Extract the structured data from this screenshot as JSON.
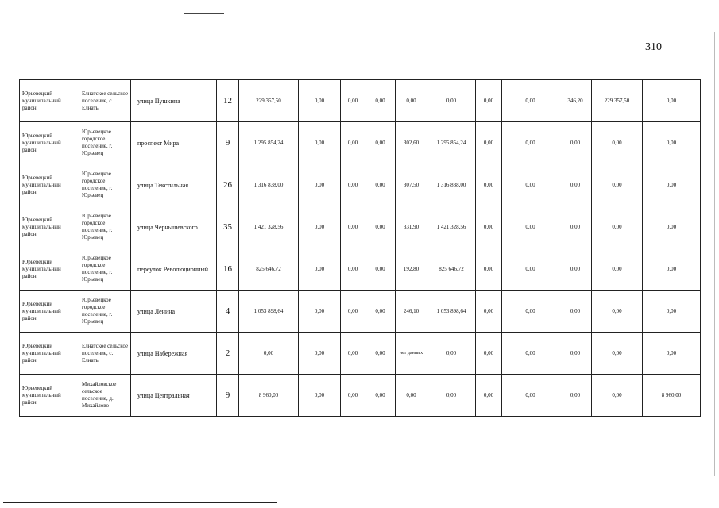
{
  "page_number": "310",
  "rows": [
    {
      "district": "Юрьевецкий муниципальный район",
      "settlement": "Елнатское сельское поселение, с. Елнать",
      "street": "улица Пушкина",
      "number": "12",
      "values": [
        "229 357,50",
        "0,00",
        "0,00",
        "0,00",
        "0,00",
        "0,00",
        "0,00",
        "0,00",
        "346,20",
        "229 357,50",
        "0,00"
      ]
    },
    {
      "district": "Юрьевецкий муниципальный район",
      "settlement": "Юрьевецкое городское поселение, г. Юрьевец",
      "street": "проспект Мира",
      "number": "9",
      "values": [
        "1 295 854,24",
        "0,00",
        "0,00",
        "0,00",
        "302,60",
        "1 295 854,24",
        "0,00",
        "0,00",
        "0,00",
        "0,00",
        "0,00"
      ]
    },
    {
      "district": "Юрьевецкий муниципальный район",
      "settlement": "Юрьевецкое городское поселение, г. Юрьевец",
      "street": "улица Текстильная",
      "number": "26",
      "values": [
        "1 316 838,00",
        "0,00",
        "0,00",
        "0,00",
        "307,50",
        "1 316 838,00",
        "0,00",
        "0,00",
        "0,00",
        "0,00",
        "0,00"
      ]
    },
    {
      "district": "Юрьевецкий муниципальный район",
      "settlement": "Юрьевецкое городское поселение, г. Юрьевец",
      "street": "улица Чернышевского",
      "number": "35",
      "values": [
        "1 421 328,56",
        "0,00",
        "0,00",
        "0,00",
        "331,90",
        "1 421 328,56",
        "0,00",
        "0,00",
        "0,00",
        "0,00",
        "0,00"
      ]
    },
    {
      "district": "Юрьевецкий муниципальный район",
      "settlement": "Юрьевецкое городское поселение, г. Юрьевец",
      "street": "переулок Революционный",
      "number": "16",
      "values": [
        "825 646,72",
        "0,00",
        "0,00",
        "0,00",
        "192,80",
        "825 646,72",
        "0,00",
        "0,00",
        "0,00",
        "0,00",
        "0,00"
      ]
    },
    {
      "district": "Юрьевецкий муниципальный район",
      "settlement": "Юрьевецкое городское поселение, г. Юрьевец",
      "street": "улица Ленина",
      "number": "4",
      "values": [
        "1 053 898,64",
        "0,00",
        "0,00",
        "0,00",
        "246,10",
        "1 053 898,64",
        "0,00",
        "0,00",
        "0,00",
        "0,00",
        "0,00"
      ]
    },
    {
      "district": "Юрьевецкий муниципальный район",
      "settlement": "Елнатское сельское поселение, с. Елнать",
      "street": "улица Набережная",
      "number": "2",
      "values": [
        "0,00",
        "0,00",
        "0,00",
        "0,00",
        "нет данных",
        "0,00",
        "0,00",
        "0,00",
        "0,00",
        "0,00",
        "0,00"
      ]
    },
    {
      "district": "Юрьевецкий муниципальный район",
      "settlement": "Михайловское сельское поселение, д. Михайлово",
      "street": "улица Центральная",
      "number": "9",
      "values": [
        "8 960,00",
        "0,00",
        "0,00",
        "0,00",
        "0,00",
        "0,00",
        "0,00",
        "0,00",
        "0,00",
        "0,00",
        "8 960,00"
      ]
    }
  ]
}
